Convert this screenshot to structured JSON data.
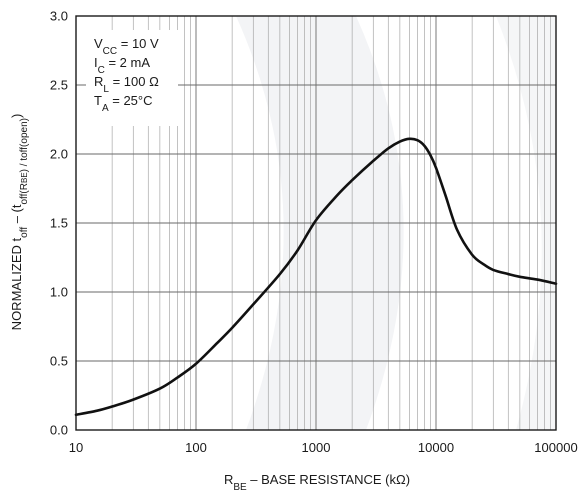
{
  "chart_data": {
    "type": "line",
    "title": "",
    "xlabel": {
      "main": "R",
      "sub": "BE",
      "rest": " – BASE RESISTANCE (kΩ)"
    },
    "ylabel": {
      "p1": "NORMALIZED t",
      "s1": "off",
      "p2": " – (t",
      "s2": "off(R",
      "s3": "BE",
      "p3": ") / t",
      "s4": "off(open)",
      "p4": ")"
    },
    "x_scale": "log",
    "xlim": [
      10,
      100000
    ],
    "ylim": [
      0,
      3
    ],
    "x_ticks": [
      "10",
      "100",
      "1000",
      "10000",
      "100000"
    ],
    "y_ticks": [
      "0.0",
      "0.5",
      "1.0",
      "1.5",
      "2.0",
      "2.5",
      "3.0"
    ],
    "grid": true,
    "conditions": [
      {
        "main": "V",
        "sub": "CC",
        "rest": " = 10 V"
      },
      {
        "main": "I",
        "sub": "C",
        "rest": " = 2 mA"
      },
      {
        "main": "R",
        "sub": "L",
        "rest": " = 100 Ω"
      },
      {
        "main": "T",
        "sub": "A",
        "rest": " = 25°C"
      }
    ],
    "series": [
      {
        "color": "#111111",
        "x": [
          10,
          15,
          20,
          30,
          50,
          70,
          100,
          150,
          200,
          300,
          500,
          700,
          1000,
          1500,
          2000,
          3000,
          4000,
          5000,
          6000,
          7000,
          8000,
          9000,
          10000,
          12000,
          15000,
          20000,
          25000,
          30000,
          40000,
          50000,
          70000,
          100000
        ],
        "y": [
          0.11,
          0.14,
          0.17,
          0.22,
          0.3,
          0.38,
          0.48,
          0.63,
          0.74,
          0.91,
          1.13,
          1.3,
          1.52,
          1.7,
          1.81,
          1.95,
          2.04,
          2.09,
          2.11,
          2.1,
          2.06,
          1.99,
          1.9,
          1.7,
          1.45,
          1.27,
          1.2,
          1.16,
          1.13,
          1.11,
          1.09,
          1.06
        ]
      }
    ]
  }
}
